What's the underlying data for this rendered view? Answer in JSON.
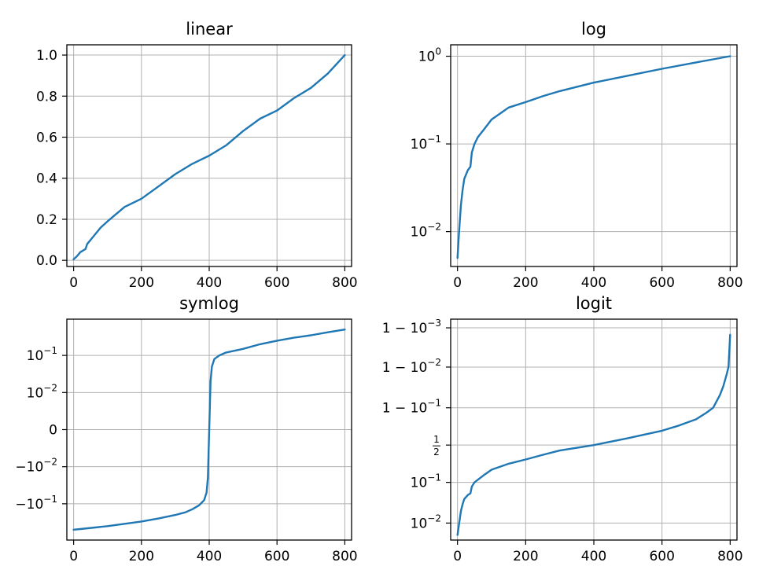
{
  "figure": {
    "line_color": "#1f77b4",
    "grid": true
  },
  "chart_data": [
    {
      "id": "linear",
      "type": "line",
      "title": "linear",
      "yscale": "linear",
      "xlim": [
        -20,
        820
      ],
      "ylim": [
        -0.03,
        1.05
      ],
      "xticks": [
        0,
        200,
        400,
        600,
        800
      ],
      "xtick_labels": [
        "0",
        "200",
        "400",
        "600",
        "800"
      ],
      "yticks": [
        0.0,
        0.2,
        0.4,
        0.6,
        0.8,
        1.0
      ],
      "ytick_labels": [
        "0.0",
        "0.2",
        "0.4",
        "0.6",
        "0.8",
        "1.0"
      ],
      "series": [
        {
          "x": [
            0,
            10,
            20,
            30,
            35,
            40,
            50,
            80,
            100,
            150,
            200,
            250,
            300,
            350,
            400,
            450,
            500,
            550,
            600,
            650,
            700,
            750,
            800
          ],
          "y": [
            0.005,
            0.02,
            0.04,
            0.05,
            0.055,
            0.08,
            0.1,
            0.16,
            0.19,
            0.26,
            0.3,
            0.36,
            0.42,
            0.47,
            0.51,
            0.56,
            0.63,
            0.69,
            0.73,
            0.79,
            0.84,
            0.91,
            1.0
          ]
        }
      ]
    },
    {
      "id": "log",
      "type": "line",
      "title": "log",
      "yscale": "log",
      "xlim": [
        -20,
        820
      ],
      "ylim": [
        0.004,
        1.35
      ],
      "xticks": [
        0,
        200,
        400,
        600,
        800
      ],
      "xtick_labels": [
        "0",
        "200",
        "400",
        "600",
        "800"
      ],
      "yticks": [
        0.01,
        0.1,
        1
      ],
      "ytick_labels": [
        {
          "base": "10",
          "exp": "−2"
        },
        {
          "base": "10",
          "exp": "−1"
        },
        {
          "base": "10",
          "exp": "0"
        }
      ],
      "series": [
        {
          "x": [
            0,
            3,
            6,
            10,
            15,
            20,
            30,
            38,
            42,
            50,
            60,
            80,
            100,
            150,
            200,
            250,
            300,
            400,
            500,
            600,
            700,
            800
          ],
          "y": [
            0.005,
            0.008,
            0.012,
            0.02,
            0.03,
            0.04,
            0.05,
            0.055,
            0.08,
            0.1,
            0.12,
            0.15,
            0.19,
            0.26,
            0.3,
            0.35,
            0.4,
            0.5,
            0.6,
            0.72,
            0.85,
            1.0
          ]
        }
      ]
    },
    {
      "id": "symlog",
      "type": "line",
      "title": "symlog",
      "yscale": "symlog",
      "xlim": [
        -20,
        820
      ],
      "ylim": [
        -0.95,
        0.95
      ],
      "xticks": [
        0,
        200,
        400,
        600,
        800
      ],
      "xtick_labels": [
        "0",
        "200",
        "400",
        "600",
        "800"
      ],
      "yticks": [
        -0.1,
        -0.01,
        0,
        0.01,
        0.1
      ],
      "ytick_labels": [
        {
          "base": "−10",
          "exp": "−1"
        },
        {
          "base": "−10",
          "exp": "−2"
        },
        {
          "base": "0",
          "exp": ""
        },
        {
          "base": "10",
          "exp": "−2"
        },
        {
          "base": "10",
          "exp": "−1"
        }
      ],
      "series": [
        {
          "x": [
            0,
            20,
            100,
            200,
            250,
            300,
            330,
            350,
            370,
            385,
            392,
            396,
            400,
            404,
            408,
            415,
            430,
            450,
            500,
            550,
            600,
            650,
            700,
            750,
            800
          ],
          "y": [
            -0.5,
            -0.48,
            -0.4,
            -0.3,
            -0.25,
            -0.2,
            -0.17,
            -0.14,
            -0.11,
            -0.08,
            -0.05,
            -0.02,
            0.0,
            0.02,
            0.05,
            0.08,
            0.1,
            0.12,
            0.15,
            0.2,
            0.25,
            0.3,
            0.35,
            0.42,
            0.5
          ]
        }
      ]
    },
    {
      "id": "logit",
      "type": "line",
      "title": "logit",
      "yscale": "logit",
      "xlim": [
        -20,
        820
      ],
      "ylim": [
        0.0037,
        0.9994
      ],
      "xticks": [
        0,
        200,
        400,
        600,
        800
      ],
      "xtick_labels": [
        "0",
        "200",
        "400",
        "600",
        "800"
      ],
      "yticks": [
        0.01,
        0.1,
        0.5,
        0.9,
        0.99,
        0.999
      ],
      "ytick_labels": [
        {
          "base": "10",
          "exp": "−2"
        },
        {
          "base": "10",
          "exp": "−1"
        },
        {
          "frac_num": "1",
          "frac_den": "2"
        },
        {
          "prefix": "1 − ",
          "base": "10",
          "exp": "−1"
        },
        {
          "prefix": "1 − ",
          "base": "10",
          "exp": "−2"
        },
        {
          "prefix": "1 − ",
          "base": "10",
          "exp": "−3"
        }
      ],
      "series": [
        {
          "x": [
            0,
            5,
            10,
            15,
            20,
            30,
            38,
            42,
            50,
            80,
            100,
            150,
            200,
            250,
            300,
            400,
            500,
            600,
            650,
            700,
            730,
            750,
            770,
            780,
            790,
            795,
            800
          ],
          "y": [
            0.005,
            0.01,
            0.02,
            0.03,
            0.04,
            0.05,
            0.055,
            0.08,
            0.1,
            0.15,
            0.19,
            0.25,
            0.3,
            0.36,
            0.42,
            0.5,
            0.6,
            0.7,
            0.76,
            0.82,
            0.87,
            0.9,
            0.95,
            0.97,
            0.985,
            0.99,
            0.9985
          ]
        }
      ]
    }
  ]
}
